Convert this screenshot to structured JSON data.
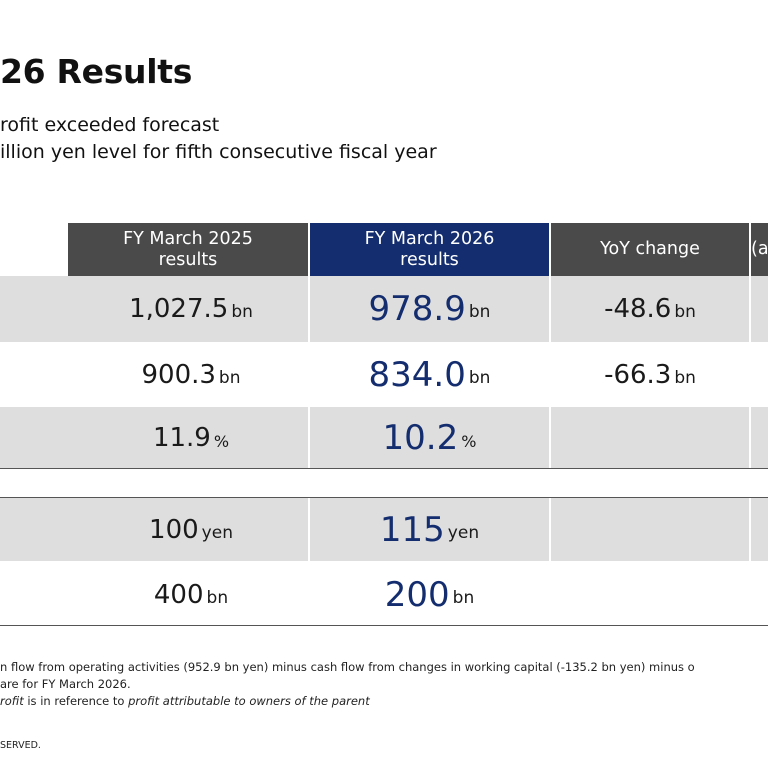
{
  "slide": {
    "title": "26 Results",
    "bullets": [
      "rofit exceeded forecast",
      "illion yen level for fifth consecutive fiscal year"
    ]
  },
  "table": {
    "headers": [
      {
        "line1": "FY March 2025",
        "line2": "results"
      },
      {
        "line1": "FY March 2026",
        "line2": "results"
      },
      {
        "line1": "YoY change",
        "line2": ""
      },
      {
        "line1": "",
        "line2": "(a"
      }
    ],
    "rows": [
      {
        "fy2025": "1,027.5",
        "fy2025_unit": "bn",
        "fy2026": "978.9",
        "fy2026_unit": "bn",
        "yoy": "-48.6",
        "yoy_unit": "bn"
      },
      {
        "fy2025": "900.3",
        "fy2025_unit": "bn",
        "fy2026": "834.0",
        "fy2026_unit": "bn",
        "yoy": "-66.3",
        "yoy_unit": "bn"
      },
      {
        "fy2025": "11.9",
        "fy2025_unit": "%",
        "fy2026": "10.2",
        "fy2026_unit": "%",
        "yoy": "",
        "yoy_unit": ""
      },
      {
        "fy2025": "100",
        "fy2025_unit": "yen",
        "fy2026": "115",
        "fy2026_unit": "yen",
        "yoy": "",
        "yoy_unit": ""
      },
      {
        "fy2025": "400",
        "fy2025_unit": "bn",
        "fy2026": "200",
        "fy2026_unit": "bn",
        "yoy": "",
        "yoy_unit": ""
      }
    ]
  },
  "footnotes": {
    "line1": "n flow from operating activities (952.9 bn yen) minus cash flow from changes in working capital (-135.2 bn yen) minus o",
    "line2": "are for FY March 2026.",
    "line3_italic_a": "rofit",
    "line3_mid": " is in reference to ",
    "line3_italic_b": "profit attributable to owners of the parent"
  },
  "copyright": "SERVED."
}
